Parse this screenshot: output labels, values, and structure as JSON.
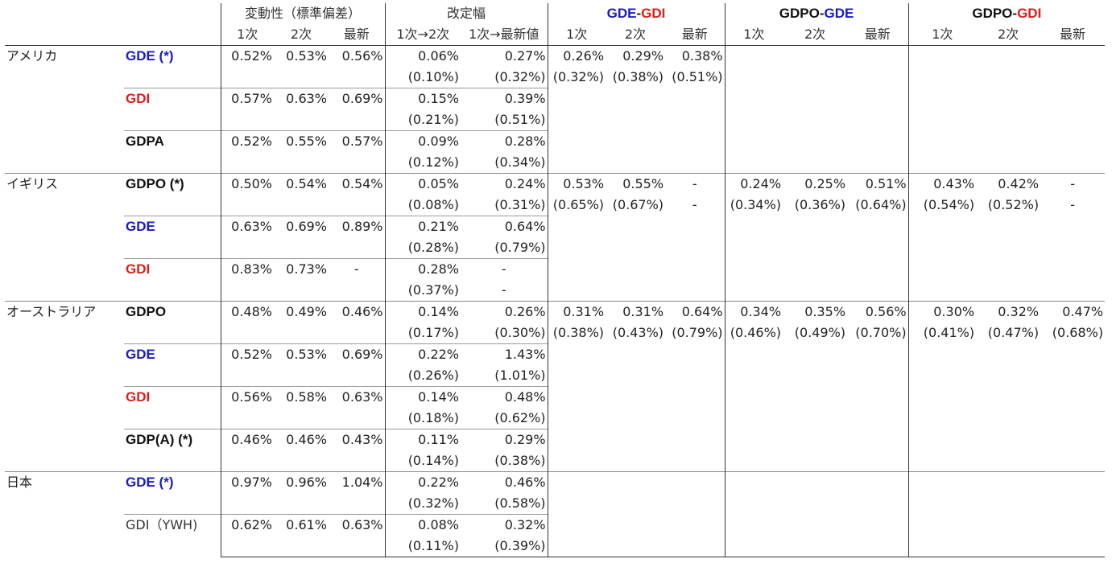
{
  "header": {
    "volatility": "変動性（標準偏差）",
    "revision": "改定幅",
    "groups": [
      {
        "a": "GDE",
        "sep": "-",
        "b": "GDI",
        "a_color": "#1a1acc",
        "b_color": "#e01b1b"
      },
      {
        "a": "GDPO",
        "sep": "-",
        "b": "GDE",
        "a_color": "#111111",
        "b_color": "#1a1acc"
      },
      {
        "a": "GDPO",
        "sep": "-",
        "b": "GDI",
        "a_color": "#111111",
        "b_color": "#e01b1b"
      }
    ],
    "sub": [
      "1次",
      "2次",
      "最新",
      "1次→2次",
      "1次→最新値",
      "1次",
      "2次",
      "最新",
      "1次",
      "2次",
      "最新",
      "1次",
      "2次",
      "最新"
    ]
  },
  "countries": [
    {
      "name": "アメリカ",
      "cross": {
        "gde_gdi": [
          [
            "0.26%",
            "0.29%",
            "0.38%"
          ],
          [
            "(0.32%)",
            "(0.38%)",
            "(0.51%)"
          ]
        ],
        "gdpo_gde": [
          [
            "",
            "",
            ""
          ],
          [
            "",
            "",
            ""
          ]
        ],
        "gdpo_gdi": [
          [
            "",
            "",
            ""
          ],
          [
            "",
            "",
            ""
          ]
        ]
      },
      "rows": [
        {
          "label": "GDE (*)",
          "color": "#1a1acc",
          "bold": true,
          "v1": "0.52%",
          "v2": "0.53%",
          "v3": "0.56%",
          "r1a": "0.06%",
          "r1b": "(0.10%)",
          "r2a": "0.27%",
          "r2b": "(0.32%)"
        },
        {
          "label": "GDI",
          "color": "#e01b1b",
          "bold": true,
          "v1": "0.57%",
          "v2": "0.63%",
          "v3": "0.69%",
          "r1a": "0.15%",
          "r1b": "(0.21%)",
          "r2a": "0.39%",
          "r2b": "(0.51%)"
        },
        {
          "label": "GDPA",
          "color": "#111111",
          "bold": true,
          "v1": "0.52%",
          "v2": "0.55%",
          "v3": "0.57%",
          "r1a": "0.09%",
          "r1b": "(0.12%)",
          "r2a": "0.28%",
          "r2b": "(0.34%)"
        }
      ]
    },
    {
      "name": "イギリス",
      "cross": {
        "gde_gdi": [
          [
            "0.53%",
            "0.55%",
            "-"
          ],
          [
            "(0.65%)",
            "(0.67%)",
            "-"
          ]
        ],
        "gdpo_gde": [
          [
            "0.24%",
            "0.25%",
            "0.51%"
          ],
          [
            "(0.34%)",
            "(0.36%)",
            "(0.64%)"
          ]
        ],
        "gdpo_gdi": [
          [
            "0.43%",
            "0.42%",
            "-"
          ],
          [
            "(0.54%)",
            "(0.52%)",
            "-"
          ]
        ]
      },
      "rows": [
        {
          "label": "GDPO (*)",
          "color": "#111111",
          "bold": true,
          "v1": "0.50%",
          "v2": "0.54%",
          "v3": "0.54%",
          "r1a": "0.05%",
          "r1b": "(0.08%)",
          "r2a": "0.24%",
          "r2b": "(0.31%)"
        },
        {
          "label": "GDE",
          "color": "#1a1acc",
          "bold": true,
          "v1": "0.63%",
          "v2": "0.69%",
          "v3": "0.89%",
          "r1a": "0.21%",
          "r1b": "(0.28%)",
          "r2a": "0.64%",
          "r2b": "(0.79%)"
        },
        {
          "label": "GDI",
          "color": "#e01b1b",
          "bold": true,
          "v1": "0.83%",
          "v2": "0.73%",
          "v3": "-",
          "r1a": "0.28%",
          "r1b": "(0.37%)",
          "r2a": "-",
          "r2b": "-"
        }
      ]
    },
    {
      "name": "オーストラリア",
      "cross": {
        "gde_gdi": [
          [
            "0.31%",
            "0.31%",
            "0.64%"
          ],
          [
            "(0.38%)",
            "(0.43%)",
            "(0.79%)"
          ]
        ],
        "gdpo_gde": [
          [
            "0.34%",
            "0.35%",
            "0.56%"
          ],
          [
            "(0.46%)",
            "(0.49%)",
            "(0.70%)"
          ]
        ],
        "gdpo_gdi": [
          [
            "0.30%",
            "0.32%",
            "0.47%"
          ],
          [
            "(0.41%)",
            "(0.47%)",
            "(0.68%)"
          ]
        ]
      },
      "rows": [
        {
          "label": "GDPO",
          "color": "#111111",
          "bold": true,
          "v1": "0.48%",
          "v2": "0.49%",
          "v3": "0.46%",
          "r1a": "0.14%",
          "r1b": "(0.17%)",
          "r2a": "0.26%",
          "r2b": "(0.30%)"
        },
        {
          "label": "GDE",
          "color": "#1a1acc",
          "bold": true,
          "v1": "0.52%",
          "v2": "0.53%",
          "v3": "0.69%",
          "r1a": "0.22%",
          "r1b": "(0.26%)",
          "r2a": "1.43%",
          "r2b": "(1.01%)"
        },
        {
          "label": "GDI",
          "color": "#e01b1b",
          "bold": true,
          "v1": "0.56%",
          "v2": "0.58%",
          "v3": "0.63%",
          "r1a": "0.14%",
          "r1b": "(0.18%)",
          "r2a": "0.48%",
          "r2b": "(0.62%)"
        },
        {
          "label": "GDP(A) (*)",
          "color": "#111111",
          "bold": true,
          "v1": "0.46%",
          "v2": "0.46%",
          "v3": "0.43%",
          "r1a": "0.11%",
          "r1b": "(0.14%)",
          "r2a": "0.29%",
          "r2b": "(0.38%)"
        }
      ]
    },
    {
      "name": "日本",
      "cross": {
        "gde_gdi": [
          [
            "",
            "",
            ""
          ],
          [
            "",
            "",
            ""
          ]
        ],
        "gdpo_gde": [
          [
            "",
            "",
            ""
          ],
          [
            "",
            "",
            ""
          ]
        ],
        "gdpo_gdi": [
          [
            "",
            "",
            ""
          ],
          [
            "",
            "",
            ""
          ]
        ]
      },
      "rows": [
        {
          "label": "GDE (*)",
          "color": "#1a1acc",
          "bold": true,
          "v1": "0.97%",
          "v2": "0.96%",
          "v3": "1.04%",
          "r1a": "0.22%",
          "r1b": "(0.32%)",
          "r2a": "0.46%",
          "r2b": "(0.58%)"
        },
        {
          "label": "GDI（YWH)",
          "color": "#333333",
          "bold": false,
          "v1": "0.62%",
          "v2": "0.61%",
          "v3": "0.63%",
          "r1a": "0.08%",
          "r1b": "(0.11%)",
          "r2a": "0.32%",
          "r2b": "(0.39%)"
        }
      ]
    }
  ]
}
